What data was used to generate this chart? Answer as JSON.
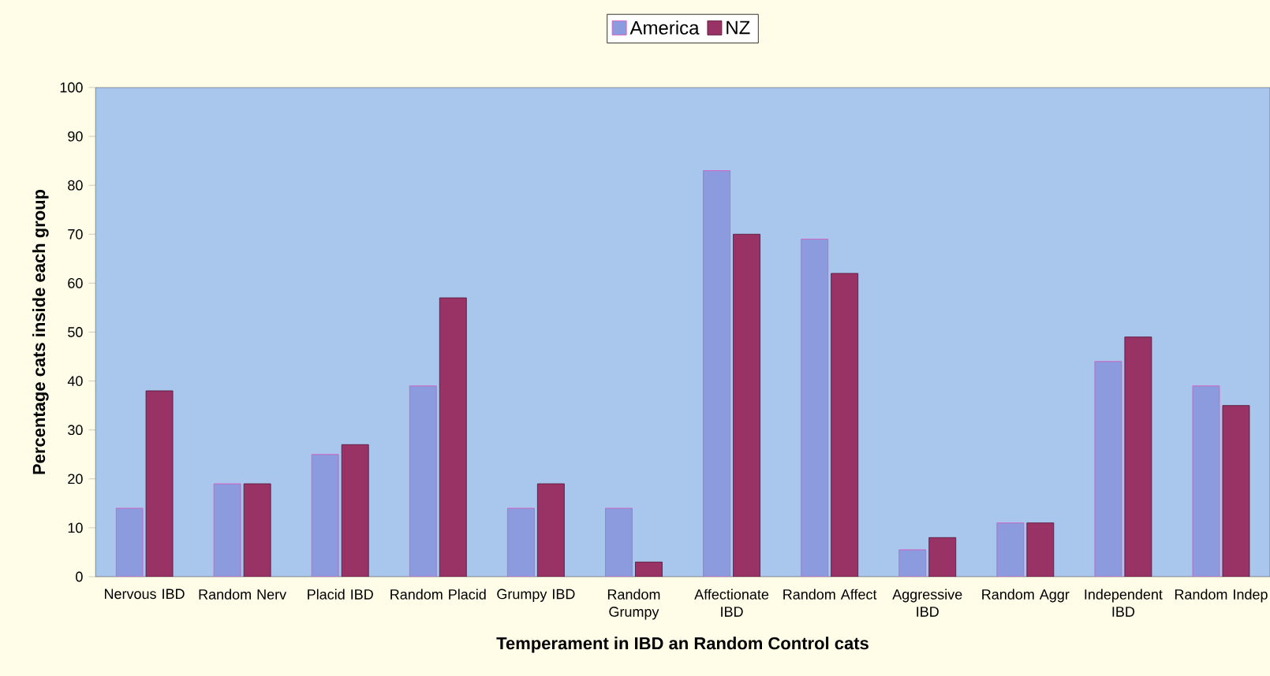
{
  "chart_data": {
    "type": "bar",
    "xlabel": "Temperament in IBD an Random Control cats",
    "ylabel": "Percentage cats inside each group",
    "categories": [
      "Nervous IBD",
      "Random Nerv",
      "Placid IBD",
      "Random Placid",
      "Grumpy IBD",
      "Random Grumpy",
      "Affectionate IBD",
      "Random Affect",
      "Aggressive IBD",
      "Random Aggr",
      "Independent IBD",
      "Random Indep"
    ],
    "series": [
      {
        "name": "America",
        "color": "#8c9ade",
        "values": [
          14,
          19,
          25,
          39,
          14,
          14,
          83,
          69,
          5.5,
          11,
          44,
          39
        ]
      },
      {
        "name": "NZ",
        "color": "#993366",
        "values": [
          38,
          19,
          27,
          57,
          19,
          3,
          70,
          62,
          8,
          11,
          49,
          35
        ]
      }
    ],
    "ylim": [
      0,
      100
    ],
    "yticks": [
      0,
      10,
      20,
      30,
      40,
      50,
      60,
      70,
      80,
      90,
      100
    ],
    "legend": "top",
    "grid": false
  }
}
